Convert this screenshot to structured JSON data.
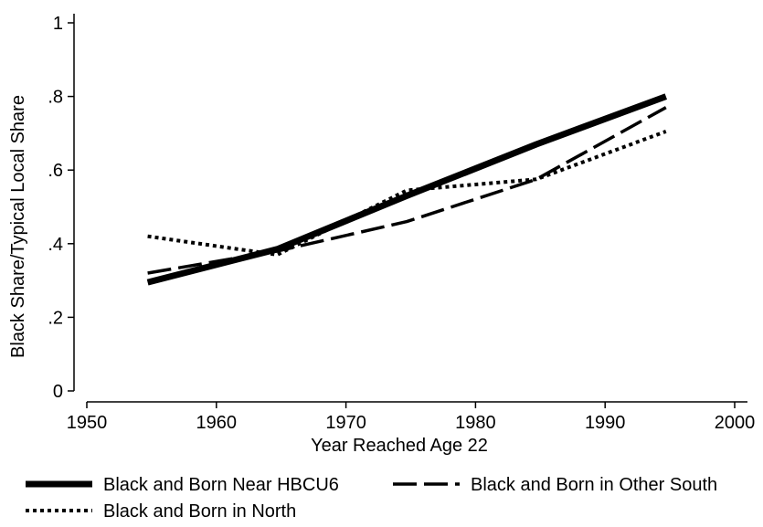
{
  "chart_data": {
    "type": "line",
    "xlabel": "Year Reached Age 22",
    "ylabel": "Black Share/Typical Local Share",
    "xlim": [
      1950,
      2000
    ],
    "ylim": [
      0,
      1
    ],
    "x_ticks": [
      1950,
      1960,
      1970,
      1980,
      1990,
      2000
    ],
    "y_ticks": [
      0,
      0.2,
      0.4,
      0.6,
      0.8,
      1
    ],
    "y_tick_labels": [
      "0",
      ".2",
      ".4",
      ".6",
      ".8",
      "1"
    ],
    "grid": false,
    "legend_position": "bottom",
    "series": [
      {
        "name": "Black and Born Near HBCU6",
        "style": "solid-thick",
        "color": "#000000",
        "x": [
          1954.7,
          1964.7,
          1974.7,
          1984.7,
          1994.7
        ],
        "y": [
          0.295,
          0.385,
          0.53,
          0.67,
          0.8
        ]
      },
      {
        "name": "Black and Born in Other South",
        "style": "dashed",
        "color": "#000000",
        "x": [
          1954.7,
          1964.7,
          1974.7,
          1984.7,
          1994.7
        ],
        "y": [
          0.32,
          0.38,
          0.46,
          0.575,
          0.77
        ]
      },
      {
        "name": "Black and Born in North",
        "style": "dotted",
        "color": "#000000",
        "x": [
          1954.7,
          1964.7,
          1974.7,
          1984.7,
          1994.7
        ],
        "y": [
          0.42,
          0.37,
          0.545,
          0.575,
          0.705
        ]
      }
    ]
  }
}
